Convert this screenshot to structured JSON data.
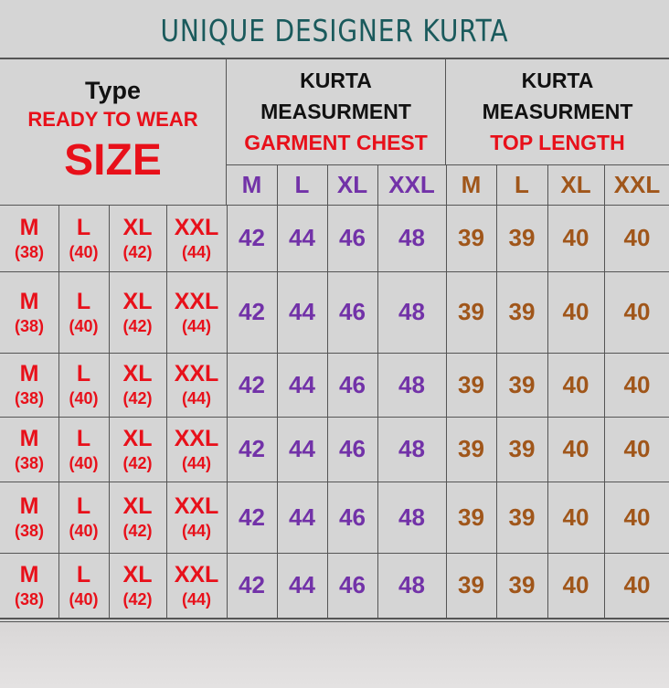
{
  "title": "UNIQUE DESIGNER KURTA",
  "type_header": {
    "line1": "Type",
    "line2": "READY TO WEAR",
    "line3": "SIZE"
  },
  "chest_header": {
    "line1": "KURTA",
    "line2": "MEASURMENT",
    "line3": "GARMENT CHEST"
  },
  "length_header": {
    "line1": "KURTA",
    "line2": "MEASURMENT",
    "line3": "TOP LENGTH"
  },
  "chest_sizes": [
    "M",
    "L",
    "XL",
    "XXL"
  ],
  "length_sizes": [
    "M",
    "L",
    "XL",
    "XXL"
  ],
  "colors": {
    "title": "#1a5a5c",
    "red": "#e8101a",
    "purple": "#7232a8",
    "brown": "#a0561a"
  },
  "rows": [
    {
      "sizes": [
        {
          "s": "M",
          "n": "(38)"
        },
        {
          "s": "L",
          "n": "(40)"
        },
        {
          "s": "XL",
          "n": "(42)"
        },
        {
          "s": "XXL",
          "n": "(44)"
        }
      ],
      "chest": [
        "42",
        "44",
        "46",
        "48"
      ],
      "length": [
        "39",
        "39",
        "40",
        "40"
      ]
    },
    {
      "sizes": [
        {
          "s": "M",
          "n": "(38)"
        },
        {
          "s": "L",
          "n": "(40)"
        },
        {
          "s": "XL",
          "n": "(42)"
        },
        {
          "s": "XXL",
          "n": "(44)"
        }
      ],
      "chest": [
        "42",
        "44",
        "46",
        "48"
      ],
      "length": [
        "39",
        "39",
        "40",
        "40"
      ]
    },
    {
      "sizes": [
        {
          "s": "M",
          "n": "(38)"
        },
        {
          "s": "L",
          "n": "(40)"
        },
        {
          "s": "XL",
          "n": "(42)"
        },
        {
          "s": "XXL",
          "n": "(44)"
        }
      ],
      "chest": [
        "42",
        "44",
        "46",
        "48"
      ],
      "length": [
        "39",
        "39",
        "40",
        "40"
      ]
    },
    {
      "sizes": [
        {
          "s": "M",
          "n": "(38)"
        },
        {
          "s": "L",
          "n": "(40)"
        },
        {
          "s": "XL",
          "n": "(42)"
        },
        {
          "s": "XXL",
          "n": "(44)"
        }
      ],
      "chest": [
        "42",
        "44",
        "46",
        "48"
      ],
      "length": [
        "39",
        "39",
        "40",
        "40"
      ]
    },
    {
      "sizes": [
        {
          "s": "M",
          "n": "(38)"
        },
        {
          "s": "L",
          "n": "(40)"
        },
        {
          "s": "XL",
          "n": "(42)"
        },
        {
          "s": "XXL",
          "n": "(44)"
        }
      ],
      "chest": [
        "42",
        "44",
        "46",
        "48"
      ],
      "length": [
        "39",
        "39",
        "40",
        "40"
      ]
    },
    {
      "sizes": [
        {
          "s": "M",
          "n": "(38)"
        },
        {
          "s": "L",
          "n": "(40)"
        },
        {
          "s": "XL",
          "n": "(42)"
        },
        {
          "s": "XXL",
          "n": "(44)"
        }
      ],
      "chest": [
        "42",
        "44",
        "46",
        "48"
      ],
      "length": [
        "39",
        "39",
        "40",
        "40"
      ]
    }
  ]
}
